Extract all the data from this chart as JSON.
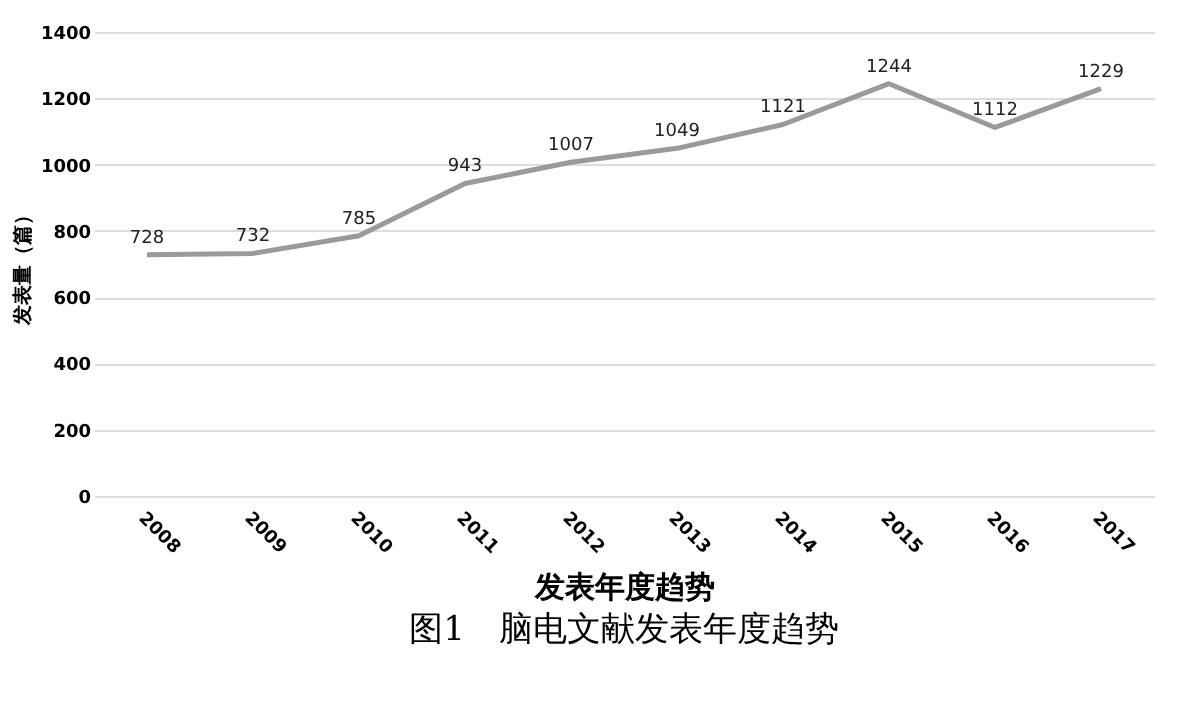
{
  "chart_data": {
    "type": "line",
    "xlabel": "发表年度趋势",
    "ylabel": "发表量（篇）",
    "categories": [
      "2008",
      "2009",
      "2010",
      "2011",
      "2012",
      "2013",
      "2014",
      "2015",
      "2016",
      "2017"
    ],
    "series": [
      {
        "color": "#9a9a9a",
        "values": [
          728,
          732,
          785,
          943,
          1007,
          1049,
          1121,
          1244,
          1112,
          1229
        ]
      }
    ],
    "ylim": [
      0,
      1400
    ],
    "yticks": [
      0,
      200,
      400,
      600,
      800,
      1000,
      1200,
      1400
    ],
    "grid": "y",
    "data_labels": true,
    "marker": "none",
    "line_style": "solid",
    "annotations": [
      "图1　脑电文献发表年度趋势"
    ]
  }
}
